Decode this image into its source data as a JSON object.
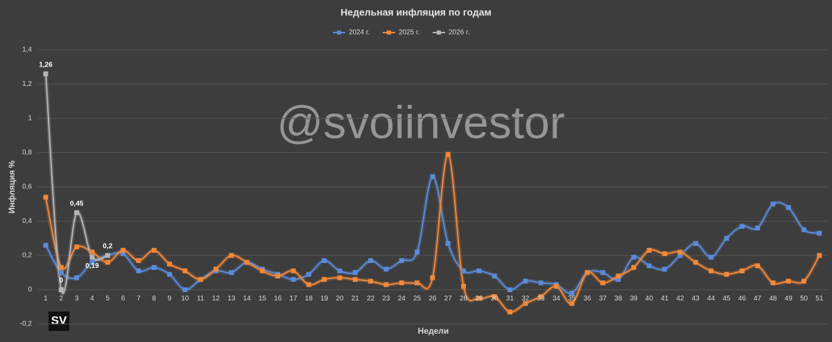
{
  "chart_data": {
    "type": "line",
    "title": "Недельная инфляция по годам",
    "y_label": "Инфляция %",
    "x_label": "Недели",
    "watermark": "@svoiinvestor",
    "logo": "SV",
    "categories": [
      "1",
      "2",
      "3",
      "4",
      "5",
      "6",
      "7",
      "8",
      "9",
      "10",
      "11",
      "12",
      "13",
      "14",
      "15",
      "16",
      "17",
      "18",
      "19",
      "20",
      "21",
      "22",
      "23",
      "24",
      "25",
      "26",
      "27",
      "28",
      "29",
      "30",
      "31",
      "32",
      "33",
      "34",
      "35",
      "36",
      "37",
      "38",
      "39",
      "40",
      "41",
      "42",
      "43",
      "44",
      "45",
      "46",
      "47",
      "48",
      "49",
      "50",
      "51"
    ],
    "ylim": [
      -0.2,
      1.4
    ],
    "yticks": [
      {
        "value": -0.2,
        "label": "-0,2"
      },
      0,
      {
        "value": 0.2,
        "label": "0,2"
      },
      {
        "value": 0.4,
        "label": "0,4"
      },
      {
        "value": 0.6,
        "label": "0,6"
      },
      {
        "value": 0.8,
        "label": "0,8"
      },
      1,
      {
        "value": 1.2,
        "label": "1,2"
      },
      {
        "value": 1.4,
        "label": "1,4"
      }
    ],
    "grid": true,
    "legend": "top",
    "series": [
      {
        "name": "2024 г.",
        "color": "#5b8bd9",
        "values": [
          0.26,
          0.1,
          0.07,
          0.16,
          0.2,
          0.21,
          0.11,
          0.13,
          0.09,
          0.0,
          0.06,
          0.11,
          0.1,
          0.16,
          0.12,
          0.09,
          0.06,
          0.09,
          0.17,
          0.11,
          0.1,
          0.17,
          0.12,
          0.17,
          0.22,
          0.66,
          0.27,
          0.11,
          0.11,
          0.08,
          0.0,
          0.05,
          0.04,
          0.03,
          -0.02,
          0.1,
          0.1,
          0.06,
          0.19,
          0.14,
          0.12,
          0.2,
          0.27,
          0.19,
          0.3,
          0.37,
          0.36,
          0.5,
          0.48,
          0.35,
          0.33
        ]
      },
      {
        "name": "2025 г.",
        "color": "#f2883a",
        "values": [
          0.54,
          0.13,
          0.25,
          0.22,
          0.16,
          0.23,
          0.17,
          0.23,
          0.15,
          0.11,
          0.06,
          0.12,
          0.2,
          0.16,
          0.11,
          0.08,
          0.11,
          0.03,
          0.06,
          0.07,
          0.06,
          0.05,
          0.03,
          0.04,
          0.04,
          0.07,
          0.79,
          0.02,
          -0.05,
          -0.04,
          -0.13,
          -0.08,
          -0.04,
          0.02,
          -0.08,
          0.1,
          0.04,
          0.08,
          0.13,
          0.23,
          0.21,
          0.22,
          0.16,
          0.11,
          0.09,
          0.11,
          0.14,
          0.04,
          0.05,
          0.05,
          0.2
        ]
      },
      {
        "name": "2026 г.",
        "color": "#b5b5b5",
        "values": [
          1.26,
          0,
          0.45,
          0.19,
          0.2,
          null,
          null,
          null,
          null,
          null,
          null,
          null,
          null,
          null,
          null,
          null,
          null,
          null,
          null,
          null,
          null,
          null,
          null,
          null,
          null,
          null,
          null,
          null,
          null,
          null,
          null,
          null,
          null,
          null,
          null,
          null,
          null,
          null,
          null,
          null,
          null,
          null,
          null,
          null,
          null,
          null,
          null,
          null,
          null,
          null,
          null
        ],
        "value_labels": [
          "1,26",
          "0",
          "0,45",
          "0,19",
          "0,2",
          null,
          null,
          null,
          null,
          null,
          null,
          null,
          null,
          null,
          null,
          null,
          null,
          null,
          null,
          null,
          null,
          null,
          null,
          null,
          null,
          null,
          null,
          null,
          null,
          null,
          null,
          null,
          null,
          null,
          null,
          null,
          null,
          null,
          null,
          null,
          null,
          null,
          null,
          null,
          null,
          null,
          null,
          null,
          null,
          null,
          null
        ]
      }
    ]
  }
}
